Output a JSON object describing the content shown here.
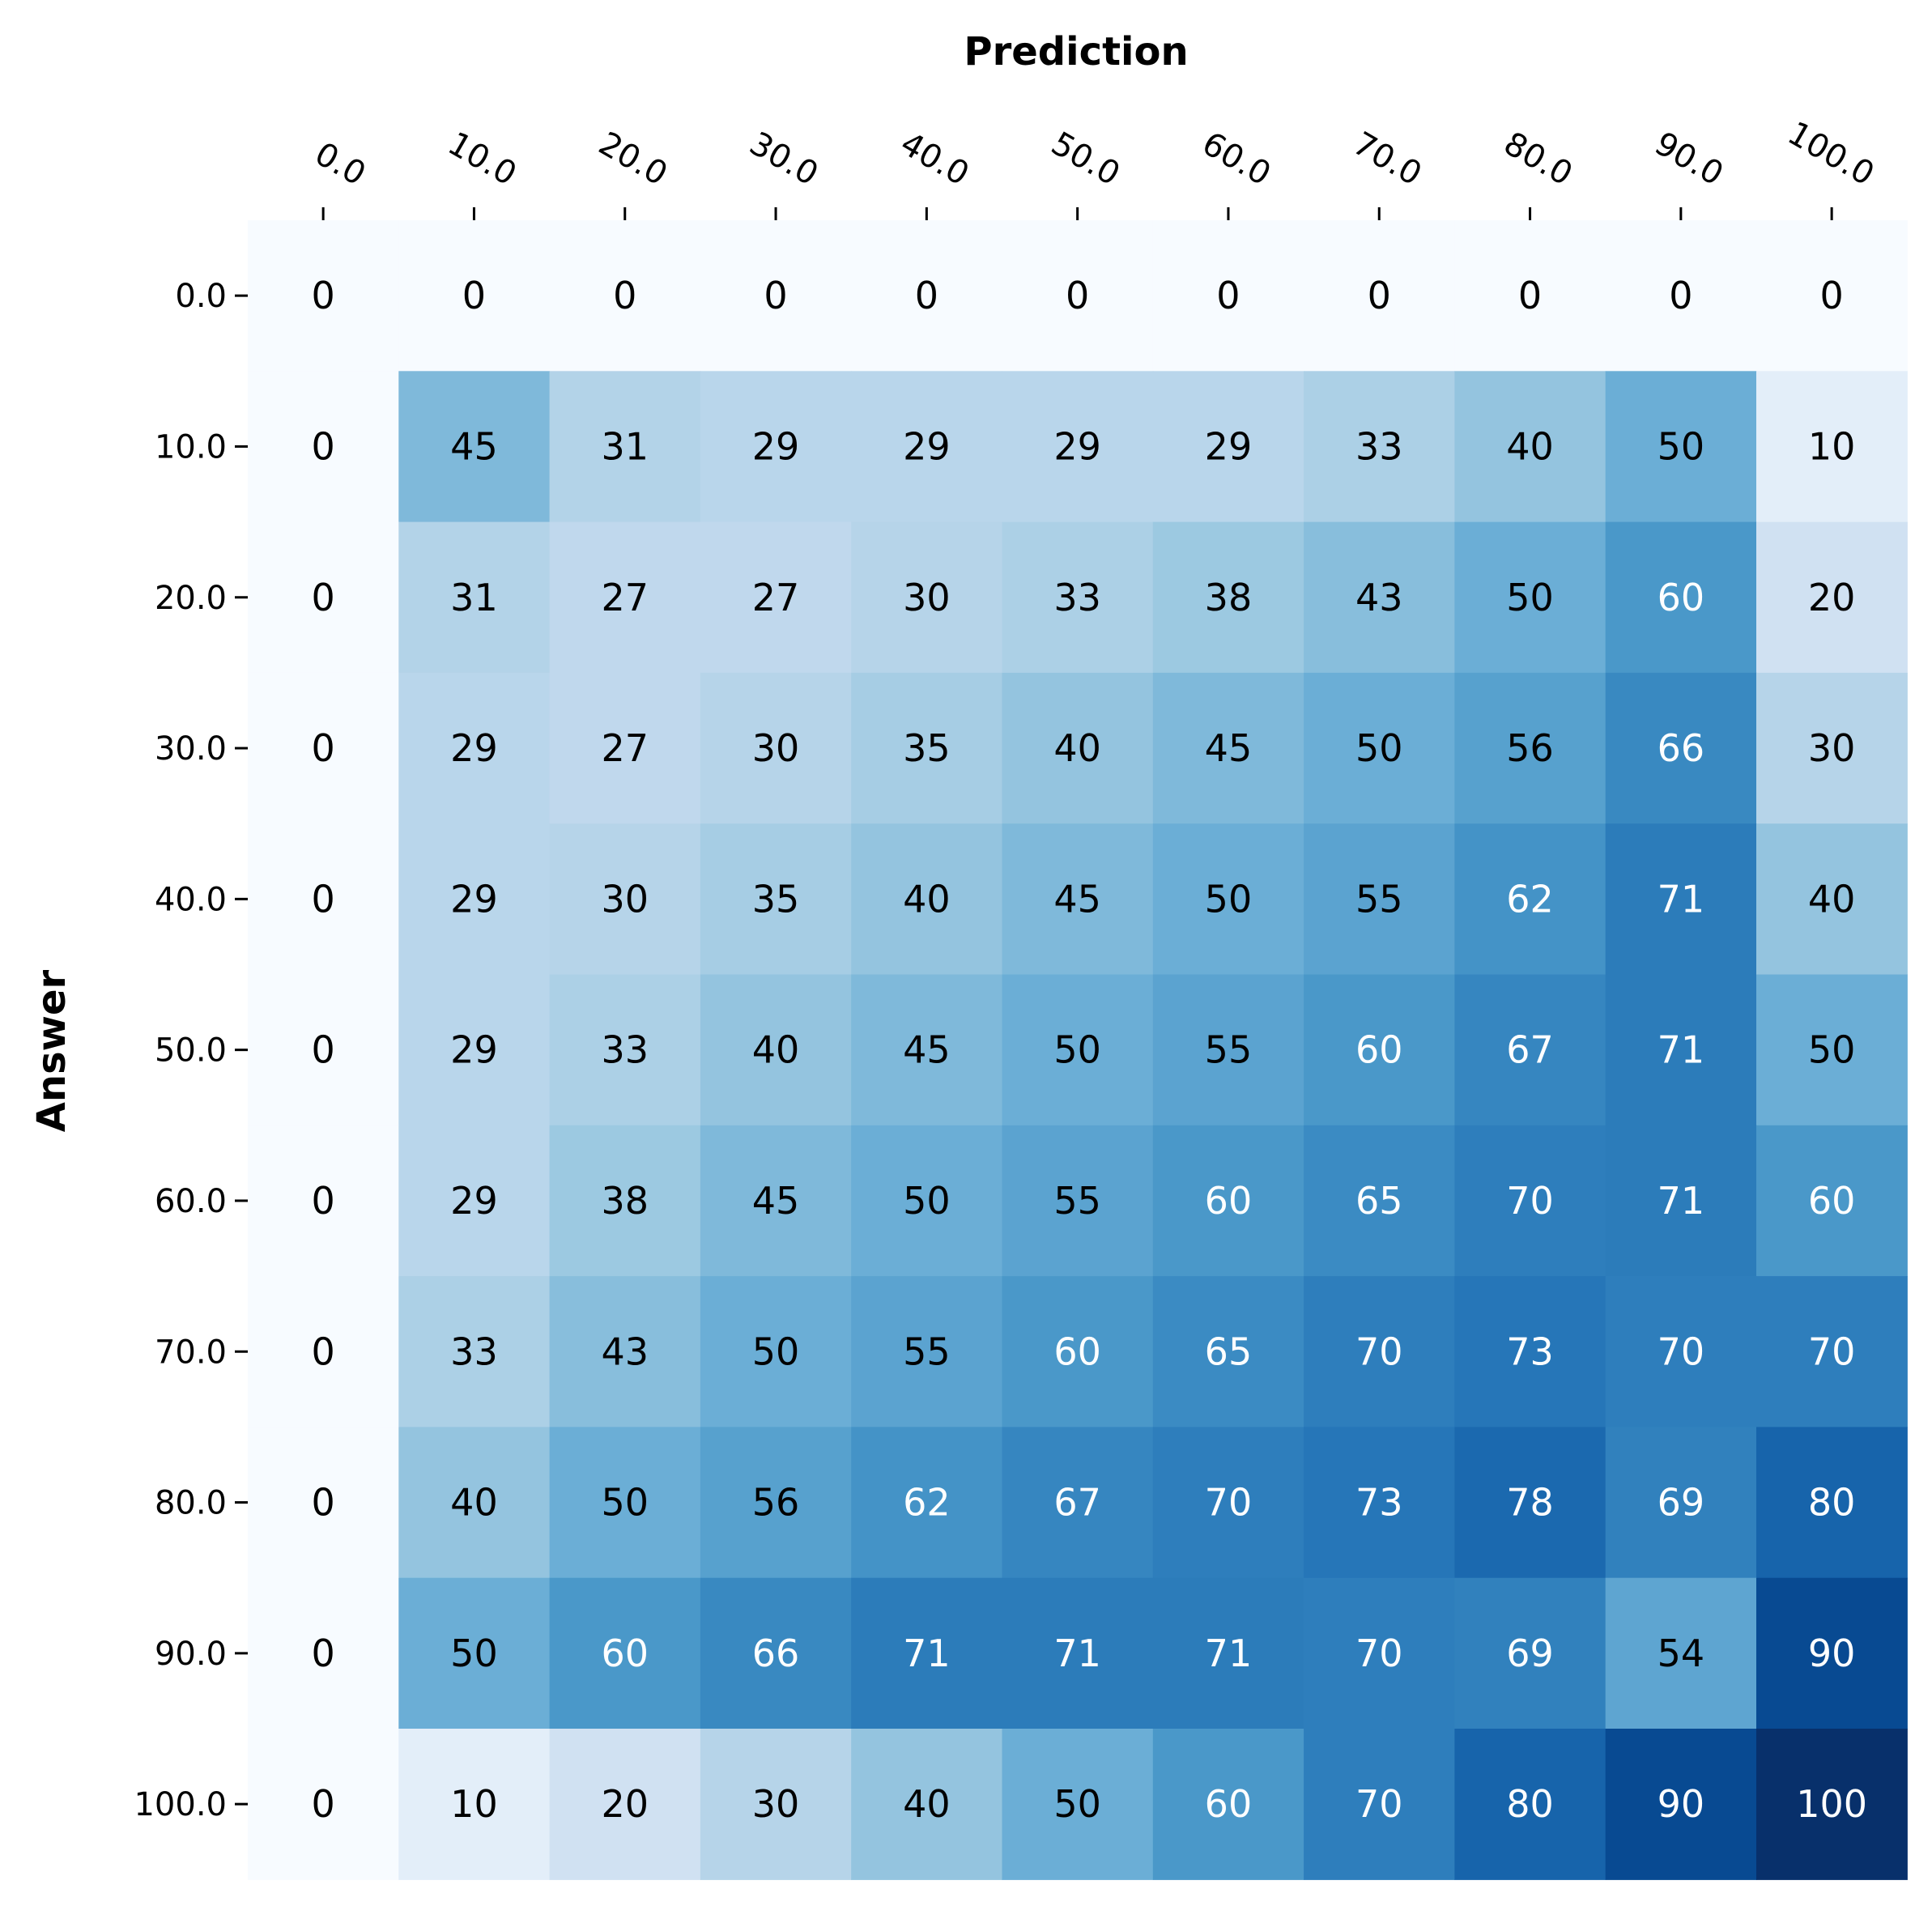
{
  "chart_data": {
    "type": "heatmap",
    "xlabel": "Prediction",
    "ylabel": "Answer",
    "x_categories": [
      "0.0",
      "10.0",
      "20.0",
      "30.0",
      "40.0",
      "50.0",
      "60.0",
      "70.0",
      "80.0",
      "90.0",
      "100.0"
    ],
    "y_categories": [
      "0.0",
      "10.0",
      "20.0",
      "30.0",
      "40.0",
      "50.0",
      "60.0",
      "70.0",
      "80.0",
      "90.0",
      "100.0"
    ],
    "values": [
      [
        0,
        0,
        0,
        0,
        0,
        0,
        0,
        0,
        0,
        0,
        0
      ],
      [
        0,
        45,
        31,
        29,
        29,
        29,
        29,
        33,
        40,
        50,
        10
      ],
      [
        0,
        31,
        27,
        27,
        30,
        33,
        38,
        43,
        50,
        60,
        20
      ],
      [
        0,
        29,
        27,
        30,
        35,
        40,
        45,
        50,
        56,
        66,
        30
      ],
      [
        0,
        29,
        30,
        35,
        40,
        45,
        50,
        55,
        62,
        71,
        40
      ],
      [
        0,
        29,
        33,
        40,
        45,
        50,
        55,
        60,
        67,
        71,
        50
      ],
      [
        0,
        29,
        38,
        45,
        50,
        55,
        60,
        65,
        70,
        71,
        60
      ],
      [
        0,
        33,
        43,
        50,
        55,
        60,
        65,
        70,
        73,
        70,
        70
      ],
      [
        0,
        40,
        50,
        56,
        62,
        67,
        70,
        73,
        78,
        69,
        80
      ],
      [
        0,
        50,
        60,
        66,
        71,
        71,
        71,
        70,
        69,
        54,
        90
      ],
      [
        0,
        10,
        20,
        30,
        40,
        50,
        60,
        70,
        80,
        90,
        100
      ]
    ],
    "value_range": [
      0,
      100
    ],
    "colormap": "Blues",
    "x_axis_position": "top",
    "colorbar": false,
    "grid": false
  }
}
